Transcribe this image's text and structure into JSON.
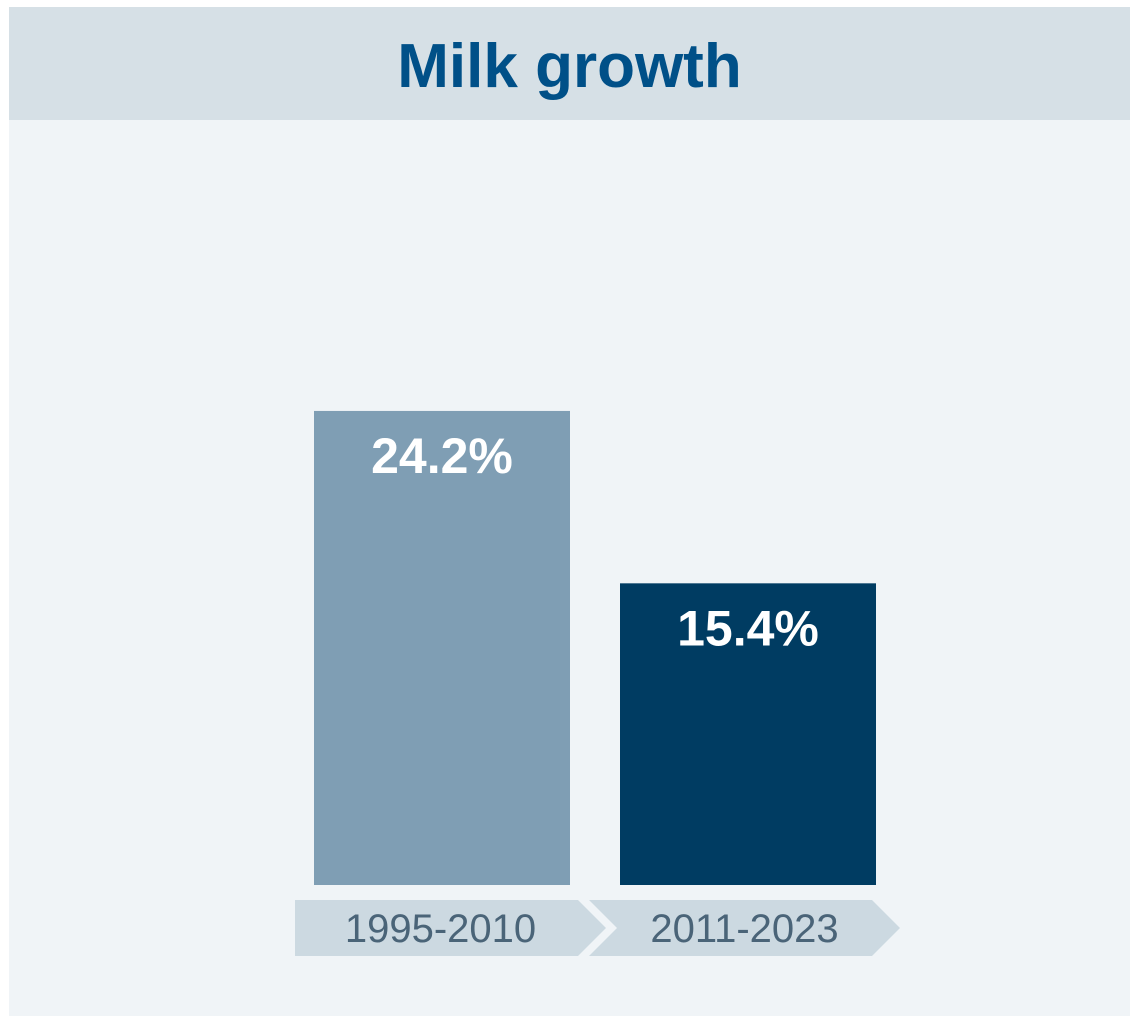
{
  "header": {
    "title": "Milk growth"
  },
  "chart_data": {
    "type": "bar",
    "title": "Milk growth",
    "categories": [
      "1995-2010",
      "2011-2023"
    ],
    "values": [
      24.2,
      15.4
    ],
    "data_labels": [
      "24.2%",
      "15.4%"
    ],
    "colors": [
      "#7f9eb4",
      "#003c62"
    ],
    "category_band_color": "#ccd9e1",
    "ylim": [
      0,
      36.5
    ],
    "grid": false,
    "legend": "none"
  }
}
